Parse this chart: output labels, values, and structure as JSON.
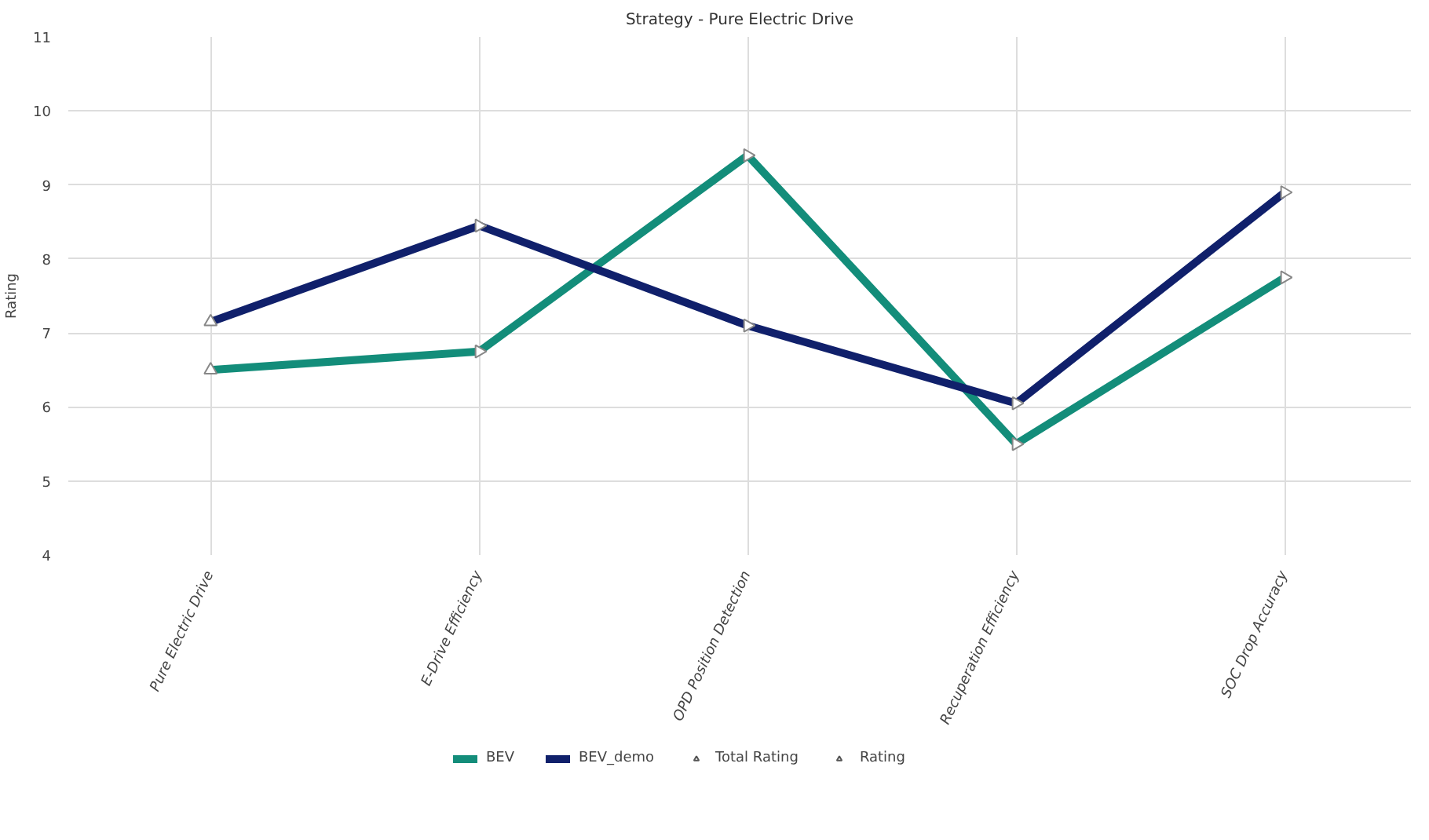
{
  "chart_data": {
    "type": "line",
    "title": "Strategy - Pure Electric Drive",
    "ylabel": "Rating",
    "categories": [
      "Pure Electric Drive",
      "E-Drive Efficiency",
      "OPD Position Detection",
      "Recuperation Efficiency",
      "SOC Drop Accuracy"
    ],
    "series": [
      {
        "name": "BEV",
        "color": "#138d7a",
        "values": [
          6.5,
          6.75,
          9.4,
          5.5,
          7.75
        ]
      },
      {
        "name": "BEV_demo",
        "color": "#10206b",
        "values": [
          7.15,
          8.45,
          7.1,
          6.05,
          8.9
        ]
      }
    ],
    "ylim": [
      4,
      11
    ],
    "yticks": [
      4,
      5,
      6,
      7,
      8,
      9,
      10,
      11
    ],
    "grid": true,
    "legend": "bottom",
    "marker": "triangle",
    "line_style": "solid",
    "annotations": [
      "Total Rating",
      "Rating"
    ]
  }
}
